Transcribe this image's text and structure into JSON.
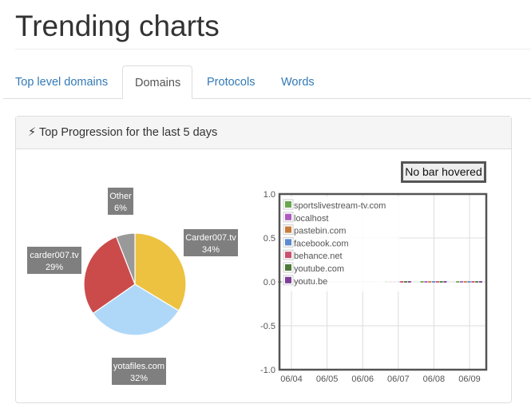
{
  "page_title": "Trending charts",
  "tabs": [
    {
      "label": "Top level domains",
      "active": false
    },
    {
      "label": "Domains",
      "active": true
    },
    {
      "label": "Protocols",
      "active": false
    },
    {
      "label": "Words",
      "active": false
    }
  ],
  "panel": {
    "icon": "bolt-icon",
    "title": "Top Progression for the last 5 days"
  },
  "hover_label": "No bar hovered",
  "chart_data": [
    {
      "type": "pie",
      "slices": [
        {
          "label": "Carder007.tv",
          "pct_label": "34%",
          "value": 34,
          "color": "#edc240"
        },
        {
          "label": "yotafiles.com",
          "pct_label": "32%",
          "value": 32,
          "color": "#afd8f8"
        },
        {
          "label": "carder007.tv",
          "pct_label": "29%",
          "value": 29,
          "color": "#cb4b4b"
        },
        {
          "label": "Other",
          "pct_label": "6%",
          "value": 6,
          "color": "#999999"
        }
      ]
    },
    {
      "type": "bar",
      "categories": [
        "06/04",
        "06/05",
        "06/06",
        "06/07",
        "06/08",
        "06/09"
      ],
      "ylim": [
        -1,
        1
      ],
      "yticks": [
        "1.0",
        "0.5",
        "0.0",
        "-0.5",
        "-1.0"
      ],
      "grid": true,
      "legend_position": "top-left",
      "series": [
        {
          "name": "sportslivestream-tv.com",
          "color": "#6aa84f",
          "values": [
            0,
            0,
            0,
            0,
            0,
            0
          ]
        },
        {
          "name": "localhost",
          "color": "#b05ac0",
          "values": [
            0,
            0,
            0,
            0,
            0,
            0
          ]
        },
        {
          "name": "pastebin.com",
          "color": "#c87c3a",
          "values": [
            0,
            0,
            0,
            0,
            0,
            0
          ]
        },
        {
          "name": "facebook.com",
          "color": "#5b8ad0",
          "values": [
            0,
            0,
            0,
            0,
            0,
            0
          ]
        },
        {
          "name": "behance.net",
          "color": "#cc5070",
          "values": [
            0,
            0,
            0,
            0,
            0,
            0
          ]
        },
        {
          "name": "youtube.com",
          "color": "#4d7a3a",
          "values": [
            0,
            0,
            0,
            0,
            0,
            0
          ]
        },
        {
          "name": "youtu.be",
          "color": "#7d3f98",
          "values": [
            0,
            0,
            0,
            0,
            0,
            0
          ]
        }
      ]
    }
  ]
}
